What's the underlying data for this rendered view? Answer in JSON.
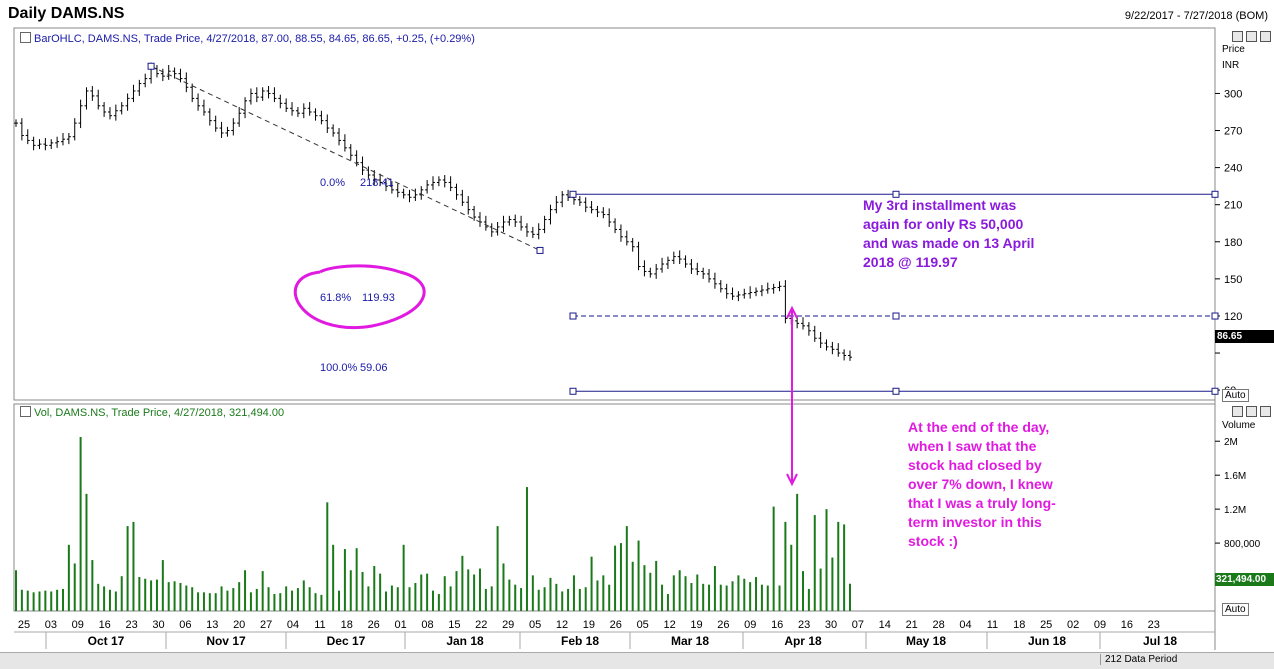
{
  "header": {
    "title": "Daily DAMS.NS",
    "date_range": "9/22/2017 - 7/27/2018 (BOM)"
  },
  "price_pane": {
    "legend": "BarOHLC, DAMS.NS, Trade Price, 4/27/2018, 87.00, 88.55, 84.65, 86.65, +0.25, (+0.29%)",
    "axis_title_1": "Price",
    "axis_title_2": "INR",
    "last_value": "86.65",
    "auto_label": "Auto"
  },
  "volume_pane": {
    "legend": "Vol, DAMS.NS, Trade Price, 4/27/2018, 321,494.00",
    "axis_title": "Volume",
    "last_value": "321,494.00",
    "auto_label": "Auto"
  },
  "fib": {
    "level_0": "0.0%",
    "value_0": "218.41",
    "level_618": "61.8%",
    "value_618": "119.93",
    "level_100": "100.0%",
    "value_100": "59.06"
  },
  "annotations": {
    "purple_note": [
      "My 3rd installment was",
      "again for only Rs 50,000",
      "and was made on 13 April",
      "2018 @ 119.97"
    ],
    "magenta_note": [
      "At the end of the day,",
      "when I saw that the",
      "stock had closed by",
      "over 7% down, I knew",
      "that I was a truly long-",
      "term investor in this",
      "stock :)"
    ]
  },
  "status_bar": {
    "data_period": "212 Data Period"
  },
  "colors": {
    "price_bars": "#000000",
    "volume_bars": "#1a7a1a",
    "fib_lines": "#1a1a8a",
    "purple_note": "#8a1adc",
    "magenta_note": "#e01ae0",
    "circle": "#e01ae0",
    "last_value_bg": "#000000",
    "volume_value_bg": "#1a7a1a"
  },
  "chart_data": {
    "type": "bar",
    "subtype": "ohlc_with_volume",
    "price_axis": {
      "ticks": [
        300,
        270,
        240,
        210,
        180,
        150,
        120,
        90,
        60
      ],
      "tick_labels": [
        "300",
        "270",
        "240",
        "210",
        "180",
        "150",
        "120",
        "",
        "60"
      ],
      "ylim": [
        52,
        340
      ]
    },
    "volume_axis": {
      "ticks": [
        2000000,
        1600000,
        1200000,
        800000,
        400000
      ],
      "tick_labels": [
        "2M",
        "1.6M",
        "1.2M",
        "800,000",
        "400,000"
      ],
      "ylim": [
        0,
        2250000
      ]
    },
    "x_axis": {
      "day_labels": [
        "25",
        "03",
        "09",
        "16",
        "23",
        "30",
        "06",
        "13",
        "20",
        "27",
        "04",
        "11",
        "18",
        "26",
        "01",
        "08",
        "15",
        "22",
        "29",
        "05",
        "12",
        "19",
        "26",
        "05",
        "12",
        "19",
        "26",
        "09",
        "16",
        "23",
        "30",
        "07",
        "14",
        "21",
        "28",
        "04",
        "11",
        "18",
        "25",
        "02",
        "09",
        "16",
        "23"
      ],
      "month_labels": [
        "Oct 17",
        "Nov 17",
        "Dec 17",
        "Jan 18",
        "Feb 18",
        "Mar 18",
        "Apr 18",
        "May 18",
        "Jun 18",
        "Jul 18"
      ]
    },
    "close_series": [
      276,
      266,
      262,
      258,
      259,
      258,
      260,
      261,
      263,
      265,
      276,
      290,
      302,
      298,
      290,
      285,
      282,
      286,
      290,
      296,
      302,
      308,
      312,
      320,
      316,
      314,
      318,
      316,
      312,
      305,
      296,
      290,
      285,
      278,
      272,
      268,
      270,
      276,
      284,
      294,
      300,
      297,
      302,
      300,
      296,
      292,
      288,
      286,
      284,
      288,
      285,
      282,
      278,
      272,
      268,
      262,
      256,
      250,
      244,
      238,
      234,
      230,
      228,
      225,
      222,
      220,
      218,
      216,
      218,
      222,
      226,
      228,
      230,
      228,
      224,
      218,
      212,
      206,
      200,
      196,
      192,
      188,
      192,
      196,
      198,
      196,
      192,
      188,
      186,
      190,
      198,
      206,
      212,
      218,
      216,
      214,
      212,
      208,
      206,
      204,
      202,
      196,
      190,
      184,
      180,
      176,
      160,
      156,
      154,
      158,
      162,
      165,
      168,
      166,
      162,
      158,
      156,
      154,
      150,
      146,
      142,
      138,
      136,
      137,
      138,
      139,
      140,
      141,
      142,
      143,
      144,
      118,
      116,
      114,
      112,
      108,
      102,
      98,
      95,
      93,
      90,
      88,
      86.65
    ],
    "volume_series": [
      480000,
      250000,
      240000,
      220000,
      230000,
      240000,
      230000,
      250000,
      260000,
      780000,
      560000,
      2050000,
      1380000,
      600000,
      320000,
      290000,
      250000,
      230000,
      410000,
      1000000,
      1050000,
      400000,
      380000,
      360000,
      370000,
      600000,
      340000,
      350000,
      330000,
      300000,
      280000,
      220000,
      220000,
      210000,
      210000,
      290000,
      240000,
      270000,
      340000,
      480000,
      220000,
      260000,
      470000,
      280000,
      200000,
      210000,
      290000,
      240000,
      270000,
      360000,
      280000,
      210000,
      190000,
      1280000,
      780000,
      240000,
      730000,
      480000,
      740000,
      460000,
      290000,
      530000,
      440000,
      230000,
      300000,
      280000,
      780000,
      280000,
      330000,
      430000,
      440000,
      240000,
      200000,
      410000,
      290000,
      470000,
      650000,
      490000,
      430000,
      500000,
      260000,
      290000,
      1000000,
      560000,
      370000,
      310000,
      270000,
      1460000,
      420000,
      250000,
      280000,
      390000,
      320000,
      230000,
      260000,
      420000,
      260000,
      280000,
      640000,
      360000,
      420000,
      310000,
      770000,
      800000,
      1000000,
      580000,
      830000,
      540000,
      450000,
      590000,
      310000,
      200000,
      420000,
      480000,
      410000,
      330000,
      430000,
      320000,
      310000,
      530000,
      310000,
      300000,
      350000,
      420000,
      380000,
      340000,
      400000,
      310000,
      300000,
      1230000,
      300000,
      1050000,
      780000,
      1380000,
      470000,
      260000,
      1130000,
      500000,
      1200000,
      630000,
      1050000,
      1020000,
      321494
    ],
    "fibonacci": {
      "levels": [
        "0.0%",
        "61.8%",
        "100.0%"
      ],
      "values": [
        218.41,
        119.93,
        59.06
      ]
    },
    "trendlines": [
      {
        "from": "Nov 17 high",
        "to": "Feb 05 low",
        "style": "dashed"
      }
    ]
  }
}
